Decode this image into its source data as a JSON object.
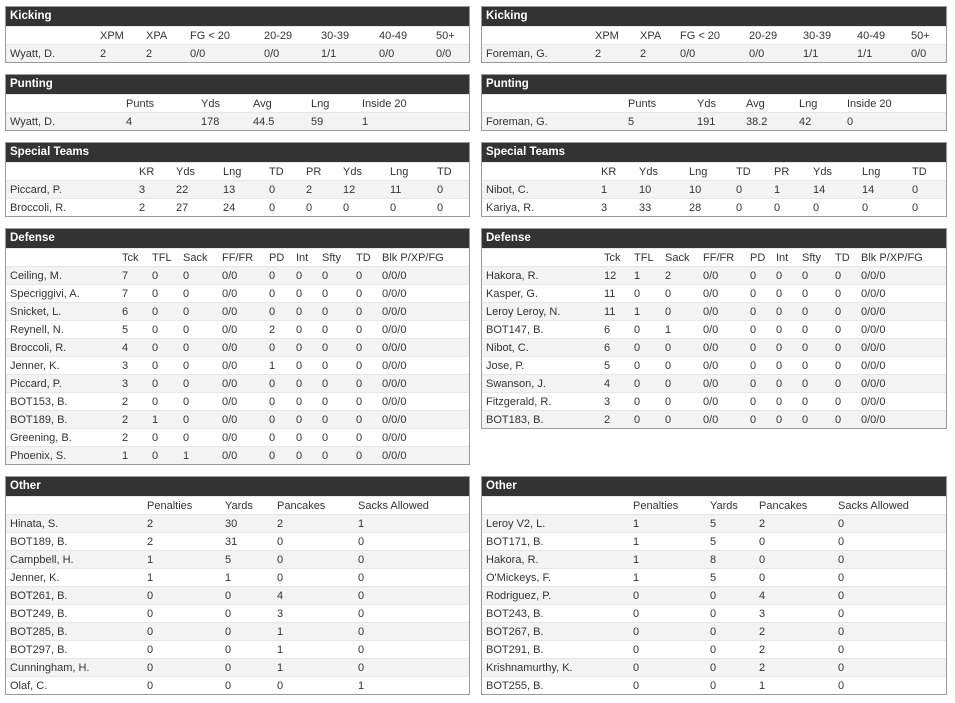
{
  "left": [
    {
      "title": "Kicking",
      "columns": [
        "XPM",
        "XPA",
        "FG < 20",
        "20-29",
        "30-39",
        "40-49",
        "50+"
      ],
      "rows": [
        [
          "Wyatt, D.",
          "2",
          "2",
          "0/0",
          "0/0",
          "1/1",
          "0/0",
          "0/0"
        ]
      ]
    },
    {
      "title": "Punting",
      "columns": [
        "Punts",
        "Yds",
        "Avg",
        "Lng",
        "Inside 20"
      ],
      "rows": [
        [
          "Wyatt, D.",
          "4",
          "178",
          "44.5",
          "59",
          "1"
        ]
      ]
    },
    {
      "title": "Special Teams",
      "columns": [
        "KR",
        "Yds",
        "Lng",
        "TD",
        "PR",
        "Yds",
        "Lng",
        "TD"
      ],
      "rows": [
        [
          "Piccard, P.",
          "3",
          "22",
          "13",
          "0",
          "2",
          "12",
          "11",
          "0"
        ],
        [
          "Broccoli, R.",
          "2",
          "27",
          "24",
          "0",
          "0",
          "0",
          "0",
          "0"
        ]
      ]
    },
    {
      "title": "Defense",
      "columns": [
        "Tck",
        "TFL",
        "Sack",
        "FF/FR",
        "PD",
        "Int",
        "Sfty",
        "TD",
        "Blk P/XP/FG"
      ],
      "rows": [
        [
          "Ceiling, M.",
          "7",
          "0",
          "0",
          "0/0",
          "0",
          "0",
          "0",
          "0",
          "0/0/0"
        ],
        [
          "Specriggivi, A.",
          "7",
          "0",
          "0",
          "0/0",
          "0",
          "0",
          "0",
          "0",
          "0/0/0"
        ],
        [
          "Snicket, L.",
          "6",
          "0",
          "0",
          "0/0",
          "0",
          "0",
          "0",
          "0",
          "0/0/0"
        ],
        [
          "Reynell, N.",
          "5",
          "0",
          "0",
          "0/0",
          "2",
          "0",
          "0",
          "0",
          "0/0/0"
        ],
        [
          "Broccoli, R.",
          "4",
          "0",
          "0",
          "0/0",
          "0",
          "0",
          "0",
          "0",
          "0/0/0"
        ],
        [
          "Jenner, K.",
          "3",
          "0",
          "0",
          "0/0",
          "1",
          "0",
          "0",
          "0",
          "0/0/0"
        ],
        [
          "Piccard, P.",
          "3",
          "0",
          "0",
          "0/0",
          "0",
          "0",
          "0",
          "0",
          "0/0/0"
        ],
        [
          "BOT153, B.",
          "2",
          "0",
          "0",
          "0/0",
          "0",
          "0",
          "0",
          "0",
          "0/0/0"
        ],
        [
          "BOT189, B.",
          "2",
          "1",
          "0",
          "0/0",
          "0",
          "0",
          "0",
          "0",
          "0/0/0"
        ],
        [
          "Greening, B.",
          "2",
          "0",
          "0",
          "0/0",
          "0",
          "0",
          "0",
          "0",
          "0/0/0"
        ],
        [
          "Phoenix, S.",
          "1",
          "0",
          "1",
          "0/0",
          "0",
          "0",
          "0",
          "0",
          "0/0/0"
        ]
      ]
    },
    {
      "title": "Other",
      "columns": [
        "Penalties",
        "Yards",
        "Pancakes",
        "Sacks Allowed"
      ],
      "rows": [
        [
          "Hinata, S.",
          "2",
          "30",
          "2",
          "1"
        ],
        [
          "BOT189, B.",
          "2",
          "31",
          "0",
          "0"
        ],
        [
          "Campbell, H.",
          "1",
          "5",
          "0",
          "0"
        ],
        [
          "Jenner, K.",
          "1",
          "1",
          "0",
          "0"
        ],
        [
          "BOT261, B.",
          "0",
          "0",
          "4",
          "0"
        ],
        [
          "BOT249, B.",
          "0",
          "0",
          "3",
          "0"
        ],
        [
          "BOT285, B.",
          "0",
          "0",
          "1",
          "0"
        ],
        [
          "BOT297, B.",
          "0",
          "0",
          "1",
          "0"
        ],
        [
          "Cunningham, H.",
          "0",
          "0",
          "1",
          "0"
        ],
        [
          "Olaf, C.",
          "0",
          "0",
          "0",
          "1"
        ]
      ]
    }
  ],
  "right": [
    {
      "title": "Kicking",
      "columns": [
        "XPM",
        "XPA",
        "FG < 20",
        "20-29",
        "30-39",
        "40-49",
        "50+"
      ],
      "rows": [
        [
          "Foreman, G.",
          "2",
          "2",
          "0/0",
          "0/0",
          "1/1",
          "1/1",
          "0/0"
        ]
      ]
    },
    {
      "title": "Punting",
      "columns": [
        "Punts",
        "Yds",
        "Avg",
        "Lng",
        "Inside 20"
      ],
      "rows": [
        [
          "Foreman, G.",
          "5",
          "191",
          "38.2",
          "42",
          "0"
        ]
      ]
    },
    {
      "title": "Special Teams",
      "columns": [
        "KR",
        "Yds",
        "Lng",
        "TD",
        "PR",
        "Yds",
        "Lng",
        "TD"
      ],
      "rows": [
        [
          "Nibot, C.",
          "1",
          "10",
          "10",
          "0",
          "1",
          "14",
          "14",
          "0"
        ],
        [
          "Kariya, R.",
          "3",
          "33",
          "28",
          "0",
          "0",
          "0",
          "0",
          "0"
        ]
      ]
    },
    {
      "title": "Defense",
      "columns": [
        "Tck",
        "TFL",
        "Sack",
        "FF/FR",
        "PD",
        "Int",
        "Sfty",
        "TD",
        "Blk P/XP/FG"
      ],
      "rows": [
        [
          "Hakora, R.",
          "12",
          "1",
          "2",
          "0/0",
          "0",
          "0",
          "0",
          "0",
          "0/0/0"
        ],
        [
          "Kasper, G.",
          "11",
          "0",
          "0",
          "0/0",
          "0",
          "0",
          "0",
          "0",
          "0/0/0"
        ],
        [
          "Leroy Leroy, N.",
          "11",
          "1",
          "0",
          "0/0",
          "0",
          "0",
          "0",
          "0",
          "0/0/0"
        ],
        [
          "BOT147, B.",
          "6",
          "0",
          "1",
          "0/0",
          "0",
          "0",
          "0",
          "0",
          "0/0/0"
        ],
        [
          "Nibot, C.",
          "6",
          "0",
          "0",
          "0/0",
          "0",
          "0",
          "0",
          "0",
          "0/0/0"
        ],
        [
          "Jose, P.",
          "5",
          "0",
          "0",
          "0/0",
          "0",
          "0",
          "0",
          "0",
          "0/0/0"
        ],
        [
          "Swanson, J.",
          "4",
          "0",
          "0",
          "0/0",
          "0",
          "0",
          "0",
          "0",
          "0/0/0"
        ],
        [
          "Fitzgerald, R.",
          "3",
          "0",
          "0",
          "0/0",
          "0",
          "0",
          "0",
          "0",
          "0/0/0"
        ],
        [
          "BOT183, B.",
          "2",
          "0",
          "0",
          "0/0",
          "0",
          "0",
          "0",
          "0",
          "0/0/0"
        ]
      ]
    },
    {
      "title": "Other",
      "columns": [
        "Penalties",
        "Yards",
        "Pancakes",
        "Sacks Allowed"
      ],
      "rows": [
        [
          "Leroy V2, L.",
          "1",
          "5",
          "2",
          "0"
        ],
        [
          "BOT171, B.",
          "1",
          "5",
          "0",
          "0"
        ],
        [
          "Hakora, R.",
          "1",
          "8",
          "0",
          "0"
        ],
        [
          "O'Mickeys, F.",
          "1",
          "5",
          "0",
          "0"
        ],
        [
          "Rodriguez, P.",
          "0",
          "0",
          "4",
          "0"
        ],
        [
          "BOT243, B.",
          "0",
          "0",
          "3",
          "0"
        ],
        [
          "BOT267, B.",
          "0",
          "0",
          "2",
          "0"
        ],
        [
          "BOT291, B.",
          "0",
          "0",
          "2",
          "0"
        ],
        [
          "Krishnamurthy, K.",
          "0",
          "0",
          "2",
          "0"
        ],
        [
          "BOT255, B.",
          "0",
          "0",
          "1",
          "0"
        ]
      ]
    }
  ]
}
